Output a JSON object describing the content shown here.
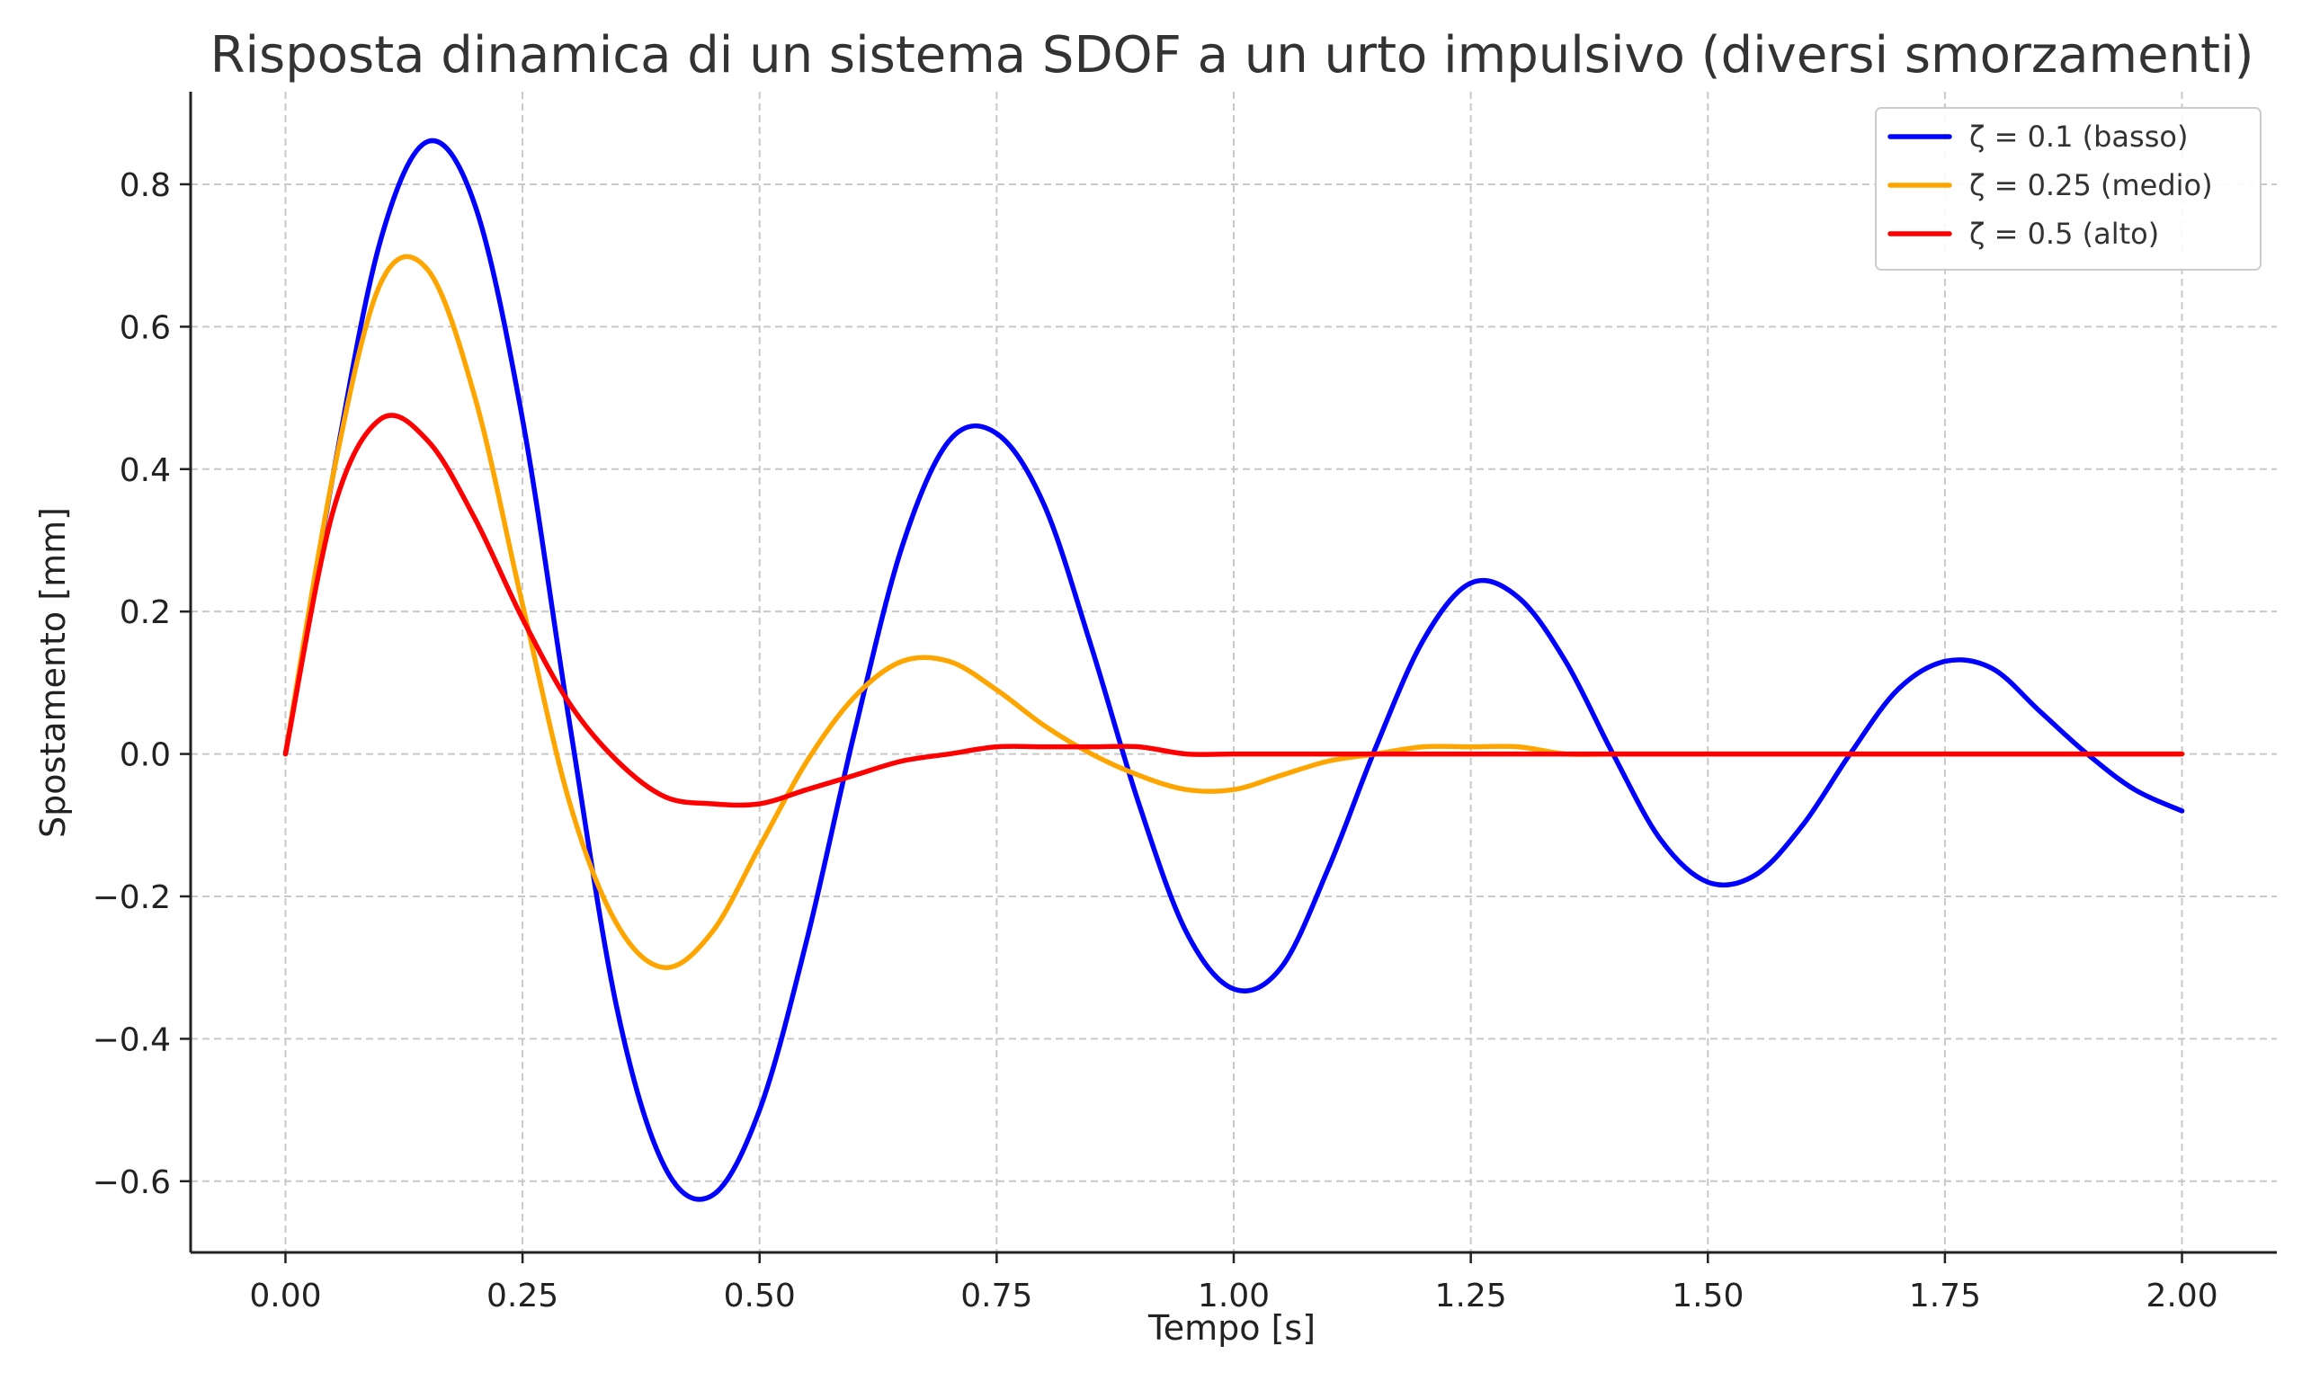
{
  "chart_data": {
    "type": "line",
    "title": "Risposta dinamica di un sistema SDOF a un urto impulsivo (diversi smorzamenti)",
    "xlabel": "Tempo [s]",
    "ylabel": "Spostamento [mm]",
    "xlim": [
      -0.1,
      2.1
    ],
    "ylim": [
      -0.7,
      0.93
    ],
    "grid": true,
    "legend_position": "top-right",
    "x_ticks": [
      0.0,
      0.25,
      0.5,
      0.75,
      1.0,
      1.25,
      1.5,
      1.75,
      2.0
    ],
    "x_tick_labels": [
      "0.00",
      "0.25",
      "0.50",
      "0.75",
      "1.00",
      "1.25",
      "1.50",
      "1.75",
      "2.00"
    ],
    "y_ticks": [
      -0.6,
      -0.4,
      -0.2,
      0.0,
      0.2,
      0.4,
      0.6,
      0.8
    ],
    "y_tick_labels": [
      "−0.6",
      "−0.4",
      "−0.2",
      "0.0",
      "0.2",
      "0.4",
      "0.6",
      "0.8"
    ],
    "series": [
      {
        "name": "ζ = 0.1 (basso)",
        "color": "#0000ff",
        "x": [
          0.0,
          0.05,
          0.1,
          0.15,
          0.2,
          0.25,
          0.3,
          0.35,
          0.4,
          0.45,
          0.5,
          0.55,
          0.6,
          0.65,
          0.7,
          0.75,
          0.8,
          0.85,
          0.9,
          0.95,
          1.0,
          1.05,
          1.1,
          1.15,
          1.2,
          1.25,
          1.3,
          1.35,
          1.4,
          1.45,
          1.5,
          1.55,
          1.6,
          1.65,
          1.7,
          1.75,
          1.8,
          1.85,
          1.9,
          1.95,
          2.0
        ],
        "y": [
          0.0,
          0.39,
          0.72,
          0.86,
          0.77,
          0.47,
          0.04,
          -0.36,
          -0.58,
          -0.62,
          -0.5,
          -0.26,
          0.03,
          0.29,
          0.44,
          0.45,
          0.35,
          0.15,
          -0.07,
          -0.25,
          -0.33,
          -0.3,
          -0.16,
          0.01,
          0.16,
          0.24,
          0.22,
          0.13,
          0.0,
          -0.12,
          -0.18,
          -0.17,
          -0.1,
          0.0,
          0.09,
          0.13,
          0.12,
          0.06,
          0.0,
          -0.05,
          -0.08
        ]
      },
      {
        "name": "ζ = 0.25 (medio)",
        "color": "#ffa500",
        "x": [
          0.0,
          0.05,
          0.1,
          0.15,
          0.2,
          0.25,
          0.3,
          0.35,
          0.4,
          0.45,
          0.5,
          0.55,
          0.6,
          0.65,
          0.7,
          0.75,
          0.8,
          0.85,
          0.9,
          0.95,
          1.0,
          1.05,
          1.1,
          1.15,
          1.2,
          1.25,
          1.3,
          1.35,
          1.4,
          1.45,
          1.5,
          1.55,
          1.6,
          1.65,
          1.7,
          1.75,
          1.8,
          1.85,
          1.9,
          1.95,
          2.0
        ],
        "y": [
          0.0,
          0.39,
          0.66,
          0.68,
          0.5,
          0.21,
          -0.07,
          -0.24,
          -0.3,
          -0.25,
          -0.13,
          -0.01,
          0.08,
          0.13,
          0.13,
          0.09,
          0.04,
          0.0,
          -0.03,
          -0.05,
          -0.05,
          -0.03,
          -0.01,
          0.0,
          0.01,
          0.01,
          0.01,
          0.0,
          0.0,
          0.0,
          0.0,
          0.0,
          0.0,
          0.0,
          0.0,
          0.0,
          0.0,
          0.0,
          0.0,
          0.0,
          0.0
        ]
      },
      {
        "name": "ζ = 0.5 (alto)",
        "color": "#ff0000",
        "x": [
          0.0,
          0.05,
          0.1,
          0.15,
          0.2,
          0.25,
          0.3,
          0.35,
          0.4,
          0.45,
          0.5,
          0.55,
          0.6,
          0.65,
          0.7,
          0.75,
          0.8,
          0.85,
          0.9,
          0.95,
          1.0,
          1.05,
          1.1,
          1.15,
          1.2,
          1.25,
          1.3,
          1.35,
          1.4,
          1.45,
          1.5,
          1.55,
          1.6,
          1.65,
          1.7,
          1.75,
          1.8,
          1.85,
          1.9,
          1.95,
          2.0
        ],
        "y": [
          0.0,
          0.34,
          0.47,
          0.44,
          0.33,
          0.19,
          0.07,
          -0.01,
          -0.06,
          -0.07,
          -0.07,
          -0.05,
          -0.03,
          -0.01,
          0.0,
          0.01,
          0.01,
          0.01,
          0.01,
          0.0,
          0.0,
          0.0,
          0.0,
          0.0,
          0.0,
          0.0,
          0.0,
          0.0,
          0.0,
          0.0,
          0.0,
          0.0,
          0.0,
          0.0,
          0.0,
          0.0,
          0.0,
          0.0,
          0.0,
          0.0,
          0.0
        ]
      }
    ]
  }
}
